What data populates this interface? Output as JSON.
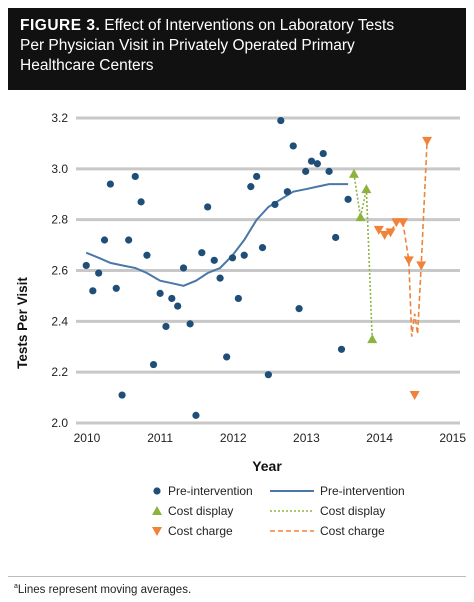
{
  "figure": {
    "label": "FIGURE 3.",
    "title_lines": [
      "Effect of Interventions on Laboratory Tests",
      "Per Physician Visit in Privately Operated Primary",
      "Healthcare Centers"
    ]
  },
  "footnote": {
    "marker": "a",
    "text": "Lines represent moving averages."
  },
  "colors": {
    "pre": "#1f4e79",
    "pre_line": "#4a77a8",
    "display": "#8db33f",
    "charge": "#f0823a",
    "grid": "#c8c8c8"
  },
  "chart_data": {
    "type": "scatter",
    "xlabel": "Year",
    "ylabel": "Tests Per Visit",
    "xlim": [
      2009.85,
      2015.1
    ],
    "ylim": [
      2.0,
      3.2
    ],
    "xticks": [
      2010,
      2011,
      2012,
      2013,
      2014,
      2015
    ],
    "yticks": [
      2.0,
      2.2,
      2.4,
      2.6,
      2.8,
      3.0,
      3.2
    ],
    "ytick_labels": [
      "2.0",
      "2.2",
      "2.4",
      "2.6",
      "2.8",
      "3.0",
      "3.2"
    ],
    "grid": "horizontal",
    "legend": {
      "position": "bottom",
      "entries": [
        {
          "label": "Pre-intervention",
          "kind": "marker",
          "series": "pre"
        },
        {
          "label": "Pre-intervention",
          "kind": "line",
          "series": "pre"
        },
        {
          "label": "Cost display",
          "kind": "marker",
          "series": "display"
        },
        {
          "label": "Cost display",
          "kind": "line",
          "series": "display"
        },
        {
          "label": "Cost charge",
          "kind": "marker",
          "series": "charge"
        },
        {
          "label": "Cost charge",
          "kind": "line",
          "series": "charge"
        }
      ]
    },
    "series": [
      {
        "name": "Pre-intervention",
        "kind": "scatter",
        "marker": "circle",
        "points": [
          [
            2009.99,
            2.62
          ],
          [
            2010.08,
            2.52
          ],
          [
            2010.16,
            2.59
          ],
          [
            2010.24,
            2.72
          ],
          [
            2010.32,
            2.94
          ],
          [
            2010.4,
            2.53
          ],
          [
            2010.48,
            2.11
          ],
          [
            2010.57,
            2.72
          ],
          [
            2010.66,
            2.97
          ],
          [
            2010.74,
            2.87
          ],
          [
            2010.82,
            2.66
          ],
          [
            2010.91,
            2.23
          ],
          [
            2011.0,
            2.51
          ],
          [
            2011.08,
            2.38
          ],
          [
            2011.16,
            2.49
          ],
          [
            2011.24,
            2.46
          ],
          [
            2011.32,
            2.61
          ],
          [
            2011.41,
            2.39
          ],
          [
            2011.49,
            2.03
          ],
          [
            2011.57,
            2.67
          ],
          [
            2011.65,
            2.85
          ],
          [
            2011.74,
            2.64
          ],
          [
            2011.82,
            2.57
          ],
          [
            2011.91,
            2.26
          ],
          [
            2011.99,
            2.65
          ],
          [
            2012.07,
            2.49
          ],
          [
            2012.15,
            2.66
          ],
          [
            2012.24,
            2.93
          ],
          [
            2012.32,
            2.97
          ],
          [
            2012.4,
            2.69
          ],
          [
            2012.48,
            2.19
          ],
          [
            2012.57,
            2.86
          ],
          [
            2012.65,
            3.19
          ],
          [
            2012.74,
            2.91
          ],
          [
            2012.82,
            3.09
          ],
          [
            2012.9,
            2.45
          ],
          [
            2012.99,
            2.99
          ],
          [
            2013.07,
            3.03
          ],
          [
            2013.15,
            3.02
          ],
          [
            2013.23,
            3.06
          ],
          [
            2013.31,
            2.99
          ],
          [
            2013.4,
            2.73
          ],
          [
            2013.48,
            2.29
          ],
          [
            2013.57,
            2.88
          ]
        ]
      },
      {
        "name": "Pre-intervention",
        "kind": "line",
        "style": "solid",
        "points": [
          [
            2009.99,
            2.67
          ],
          [
            2010.16,
            2.65
          ],
          [
            2010.32,
            2.63
          ],
          [
            2010.48,
            2.62
          ],
          [
            2010.66,
            2.61
          ],
          [
            2010.82,
            2.59
          ],
          [
            2011.0,
            2.56
          ],
          [
            2011.16,
            2.55
          ],
          [
            2011.32,
            2.54
          ],
          [
            2011.49,
            2.56
          ],
          [
            2011.65,
            2.59
          ],
          [
            2011.82,
            2.61
          ],
          [
            2011.99,
            2.66
          ],
          [
            2012.15,
            2.72
          ],
          [
            2012.32,
            2.8
          ],
          [
            2012.48,
            2.85
          ],
          [
            2012.65,
            2.88
          ],
          [
            2012.82,
            2.91
          ],
          [
            2012.99,
            2.92
          ],
          [
            2013.15,
            2.93
          ],
          [
            2013.31,
            2.94
          ],
          [
            2013.57,
            2.94
          ]
        ]
      },
      {
        "name": "Cost display",
        "kind": "scatter",
        "marker": "triangle-up",
        "points": [
          [
            2013.65,
            2.98
          ],
          [
            2013.74,
            2.81
          ],
          [
            2013.82,
            2.92
          ],
          [
            2013.9,
            2.33
          ]
        ]
      },
      {
        "name": "Cost display",
        "kind": "line",
        "style": "dotted",
        "points": [
          [
            2013.65,
            2.98
          ],
          [
            2013.74,
            2.81
          ],
          [
            2013.82,
            2.92
          ],
          [
            2013.9,
            2.33
          ]
        ]
      },
      {
        "name": "Cost charge",
        "kind": "scatter",
        "marker": "triangle-down",
        "points": [
          [
            2013.99,
            2.76
          ],
          [
            2014.07,
            2.74
          ],
          [
            2014.15,
            2.75
          ],
          [
            2014.23,
            2.79
          ],
          [
            2014.32,
            2.79
          ],
          [
            2014.4,
            2.64
          ],
          [
            2014.48,
            2.11
          ],
          [
            2014.57,
            2.62
          ],
          [
            2014.65,
            3.11
          ]
        ]
      },
      {
        "name": "Cost charge",
        "kind": "line",
        "style": "dashed",
        "points": [
          [
            2013.99,
            2.76
          ],
          [
            2014.07,
            2.74
          ],
          [
            2014.15,
            2.75
          ],
          [
            2014.23,
            2.79
          ],
          [
            2014.32,
            2.79
          ],
          [
            2014.4,
            2.64
          ],
          [
            2014.44,
            2.34
          ],
          [
            2014.48,
            2.43
          ],
          [
            2014.52,
            2.35
          ],
          [
            2014.57,
            2.62
          ],
          [
            2014.65,
            3.11
          ]
        ]
      }
    ]
  }
}
